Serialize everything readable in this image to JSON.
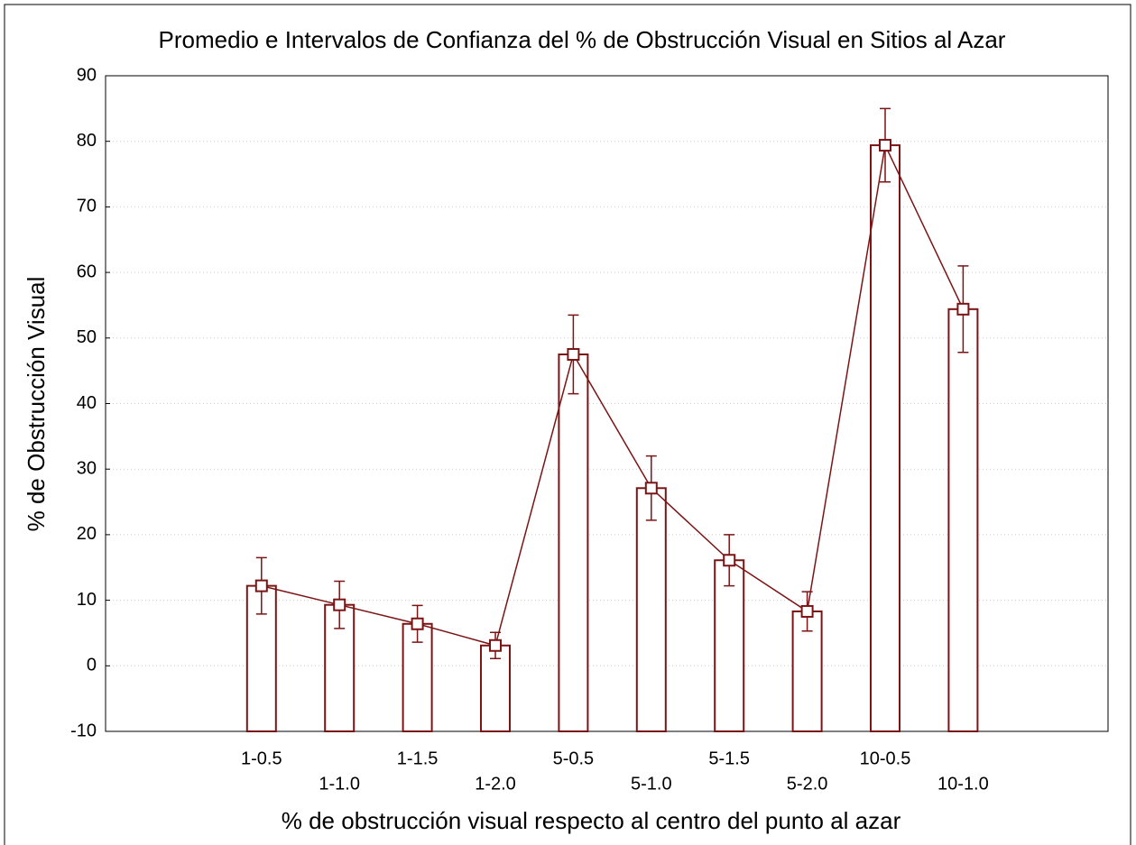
{
  "chart_data": {
    "type": "bar",
    "title": "Promedio e Intervalos de Confianza del % de Obstrucción Visual en Sitios al Azar",
    "x_label": "% de obstrucción visual respecto al centro del punto al azar",
    "y_label": "% de Obstrucción Visual",
    "categories": [
      "1-0.5",
      "1-1.0",
      "1-1.5",
      "1-2.0",
      "5-0.5",
      "5-1.0",
      "5-1.5",
      "5-2.0",
      "10-0.5",
      "10-1.0"
    ],
    "values": [
      12.2,
      9.3,
      6.4,
      3.1,
      47.5,
      27.1,
      16.1,
      8.3,
      79.4,
      54.4
    ],
    "errors": [
      4.3,
      3.6,
      2.8,
      2.0,
      6.0,
      4.9,
      3.9,
      3.0,
      5.6,
      6.6
    ],
    "color": "#7b1414",
    "ylim": [
      -10,
      90
    ],
    "yticks": [
      -10,
      0,
      10,
      20,
      30,
      40,
      50,
      60,
      70,
      80,
      90
    ],
    "grid": true
  }
}
